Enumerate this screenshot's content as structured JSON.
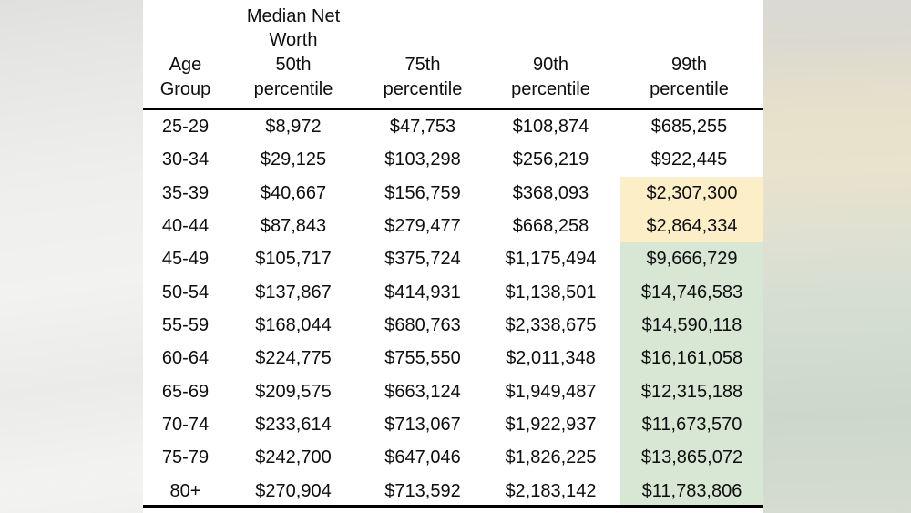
{
  "table": {
    "overtitle": {
      "line1": "Median Net",
      "line2": "Worth"
    },
    "columns": [
      {
        "line1": "Age",
        "line2": "Group"
      },
      {
        "line1": "50th",
        "line2": "percentile"
      },
      {
        "line1": "75th",
        "line2": "percentile"
      },
      {
        "line1": "90th",
        "line2": "percentile"
      },
      {
        "line1": "99th",
        "line2": "percentile"
      }
    ],
    "rows": [
      {
        "age": "25-29",
        "values": [
          "$8,972",
          "$47,753",
          "$108,874",
          "$685,255"
        ],
        "highlight": "none"
      },
      {
        "age": "30-34",
        "values": [
          "$29,125",
          "$103,298",
          "$256,219",
          "$922,445"
        ],
        "highlight": "none"
      },
      {
        "age": "35-39",
        "values": [
          "$40,667",
          "$156,759",
          "$368,093",
          "$2,307,300"
        ],
        "highlight": "yellow"
      },
      {
        "age": "40-44",
        "values": [
          "$87,843",
          "$279,477",
          "$668,258",
          "$2,864,334"
        ],
        "highlight": "yellow"
      },
      {
        "age": "45-49",
        "values": [
          "$105,717",
          "$375,724",
          "$1,175,494",
          "$9,666,729"
        ],
        "highlight": "green"
      },
      {
        "age": "50-54",
        "values": [
          "$137,867",
          "$414,931",
          "$1,138,501",
          "$14,746,583"
        ],
        "highlight": "green"
      },
      {
        "age": "55-59",
        "values": [
          "$168,044",
          "$680,763",
          "$2,338,675",
          "$14,590,118"
        ],
        "highlight": "green"
      },
      {
        "age": "60-64",
        "values": [
          "$224,775",
          "$755,550",
          "$2,011,348",
          "$16,161,058"
        ],
        "highlight": "green"
      },
      {
        "age": "65-69",
        "values": [
          "$209,575",
          "$663,124",
          "$1,949,487",
          "$12,315,188"
        ],
        "highlight": "green"
      },
      {
        "age": "70-74",
        "values": [
          "$233,614",
          "$713,067",
          "$1,922,937",
          "$11,673,570"
        ],
        "highlight": "green"
      },
      {
        "age": "75-79",
        "values": [
          "$242,700",
          "$647,046",
          "$1,826,225",
          "$13,865,072"
        ],
        "highlight": "green"
      },
      {
        "age": "80+",
        "values": [
          "$270,904",
          "$713,592",
          "$2,183,142",
          "$11,783,806"
        ],
        "highlight": "green"
      }
    ],
    "colors": {
      "yellow_highlight": "#FCEFC7",
      "green_highlight": "#D8E6D4"
    }
  },
  "chart_data": {
    "type": "table",
    "title": "Median Net Worth",
    "columns": [
      "Age Group",
      "50th percentile",
      "75th percentile",
      "90th percentile",
      "99th percentile"
    ],
    "rows": [
      [
        "25-29",
        8972,
        47753,
        108874,
        685255
      ],
      [
        "30-34",
        29125,
        103298,
        256219,
        922445
      ],
      [
        "35-39",
        40667,
        156759,
        368093,
        2307300
      ],
      [
        "40-44",
        87843,
        279477,
        668258,
        2864334
      ],
      [
        "45-49",
        105717,
        375724,
        1175494,
        9666729
      ],
      [
        "50-54",
        137867,
        414931,
        1138501,
        14746583
      ],
      [
        "55-59",
        168044,
        680763,
        2338675,
        14590118
      ],
      [
        "60-64",
        224775,
        755550,
        2011348,
        16161058
      ],
      [
        "65-69",
        209575,
        663124,
        1949487,
        12315188
      ],
      [
        "70-74",
        233614,
        713067,
        1922937,
        11673570
      ],
      [
        "75-79",
        242700,
        647046,
        1826225,
        13865072
      ],
      [
        "80+",
        270904,
        713592,
        2183142,
        11783806
      ]
    ],
    "highlight_legend": {
      "yellow_rows_99th": [
        "35-39",
        "40-44"
      ],
      "green_rows_99th": [
        "45-49",
        "50-54",
        "55-59",
        "60-64",
        "65-69",
        "70-74",
        "75-79",
        "80+"
      ]
    }
  }
}
